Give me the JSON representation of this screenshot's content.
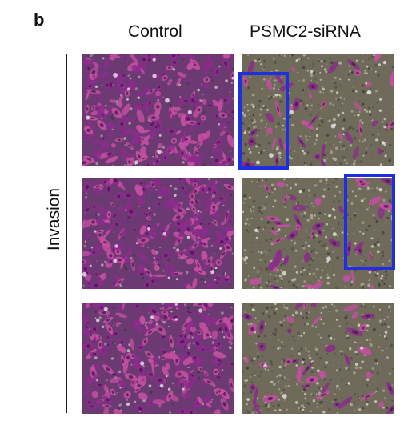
{
  "figure": {
    "panel_letter": "b",
    "columns": [
      "Control",
      "PSMC2-siRNA"
    ],
    "row_label": "Invasion"
  },
  "colors": {
    "stain_dense": "#8a2c8a",
    "stain_light": "#c24fa0",
    "background_dense": "#6b3a72",
    "background_sparse": "#6f6a5a",
    "highlight_box": "#1d2fe0"
  },
  "panels": [
    {
      "column": "Control",
      "density": "dense"
    },
    {
      "column": "PSMC2-siRNA",
      "density": "sparse"
    },
    {
      "column": "Control",
      "density": "dense"
    },
    {
      "column": "PSMC2-siRNA",
      "density": "sparse"
    },
    {
      "column": "Control",
      "density": "dense"
    },
    {
      "column": "PSMC2-siRNA",
      "density": "sparse"
    }
  ]
}
